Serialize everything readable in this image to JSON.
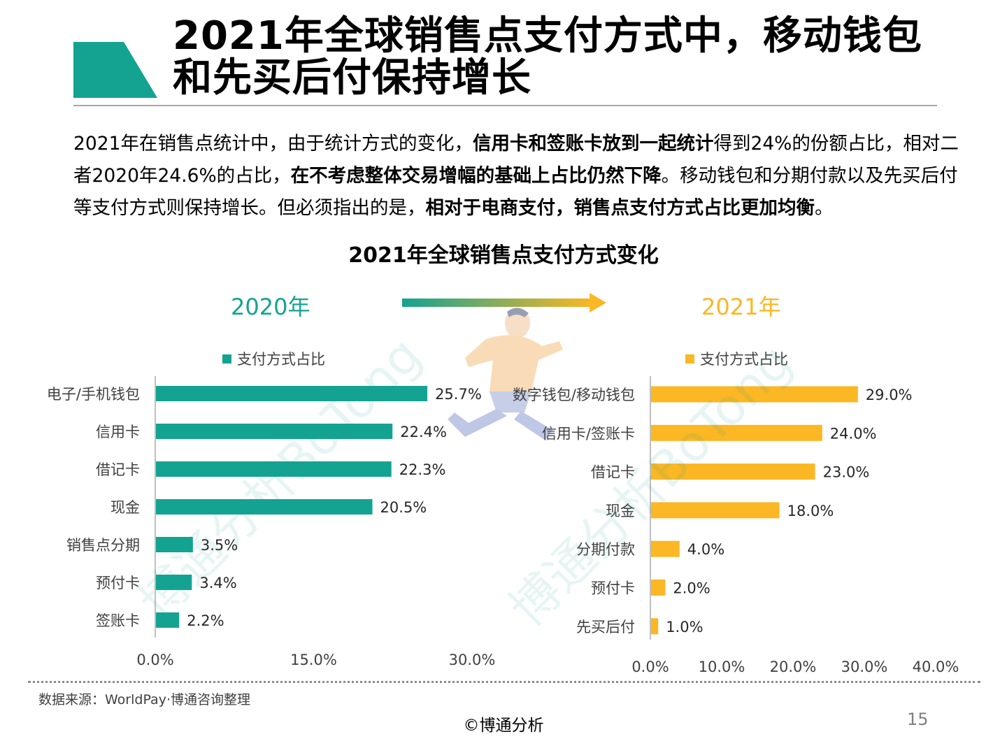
{
  "header": {
    "title": "2021年全球销售点支付方式中，移动钱包和先买后付保持增长"
  },
  "intro": {
    "seg1": "2021年在销售点统计中，由于统计方式的变化，",
    "bold1": "信用卡和签账卡放到一起统计",
    "seg2": "得到24%的份额占比，相对二者2020年24.6%的占比，",
    "bold2": "在不考虑整体交易增幅的基础上占比仍然下降",
    "seg3": "。移动钱包和分期付款以及先买后付等支付方式则保持增长。但必须指出的是，",
    "bold3": "相对于电商支付，销售点支付方式占比更加均衡",
    "seg4": "。"
  },
  "chart_title": "2021年全球销售点支付方式变化",
  "colors": {
    "teal": "#14A391",
    "orange": "#FBB724",
    "accent": "#14A391"
  },
  "watermark": "博通分析BoTong",
  "chart_data": [
    {
      "type": "bar",
      "orientation": "horizontal",
      "year_label": "2020年",
      "title": "",
      "legend": "支付方式占比",
      "legend_position": "top",
      "categories": [
        "电子/手机钱包",
        "信用卡",
        "借记卡",
        "现金",
        "销售点分期",
        "预付卡",
        "签账卡"
      ],
      "values": [
        25.7,
        22.4,
        22.3,
        20.5,
        3.5,
        3.4,
        2.2
      ],
      "labels": [
        "25.7%",
        "22.4%",
        "22.3%",
        "20.5%",
        "3.5%",
        "3.4%",
        "2.2%"
      ],
      "xlim": [
        0,
        30
      ],
      "xticks": [
        0,
        15,
        30
      ],
      "xtick_labels": [
        "0.0%",
        "15.0%",
        "30.0%"
      ],
      "grid": false,
      "color": "#14A391"
    },
    {
      "type": "bar",
      "orientation": "horizontal",
      "year_label": "2021年",
      "title": "",
      "legend": "支付方式占比",
      "legend_position": "top",
      "categories": [
        "数字钱包/移动钱包",
        "信用卡/签账卡",
        "借记卡",
        "现金",
        "分期付款",
        "预付卡",
        "先买后付"
      ],
      "values": [
        29.0,
        24.0,
        23.0,
        18.0,
        4.0,
        2.0,
        1.0
      ],
      "labels": [
        "29.0%",
        "24.0%",
        "23.0%",
        "18.0%",
        "4.0%",
        "2.0%",
        "1.0%"
      ],
      "xlim": [
        0,
        40
      ],
      "xticks": [
        0,
        10,
        20,
        30,
        40
      ],
      "xtick_labels": [
        "0.0%",
        "10.0%",
        "20.0%",
        "30.0%",
        "40.0%"
      ],
      "grid": false,
      "color": "#FBB724"
    }
  ],
  "footer": {
    "source": "数据来源：WorldPay·博通咨询整理",
    "copyright": "©博通分析",
    "page": "15"
  }
}
